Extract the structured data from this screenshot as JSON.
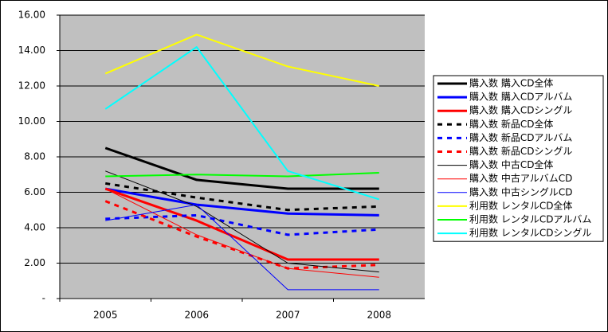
{
  "chart_data": {
    "type": "line",
    "categories": [
      "2005",
      "2006",
      "2007",
      "2008"
    ],
    "ylim": [
      0,
      16
    ],
    "yticks": [
      {
        "value": 0,
        "label": "-"
      },
      {
        "value": 2,
        "label": "2.00"
      },
      {
        "value": 4,
        "label": "4.00"
      },
      {
        "value": 6,
        "label": "6.00"
      },
      {
        "value": 8,
        "label": "8.00"
      },
      {
        "value": 10,
        "label": "10.00"
      },
      {
        "value": 12,
        "label": "12.00"
      },
      {
        "value": 14,
        "label": "14.00"
      },
      {
        "value": 16,
        "label": "16.00"
      }
    ],
    "grid": true,
    "legend": "right",
    "series": [
      {
        "name": "購入数 購入CD全体",
        "color": "#000000",
        "width": 3,
        "dash": "solid",
        "values": [
          8.5,
          6.7,
          6.2,
          6.2
        ]
      },
      {
        "name": "購入数 購入CDアルバム",
        "color": "#0000ff",
        "width": 3,
        "dash": "solid",
        "values": [
          6.2,
          5.3,
          4.8,
          4.7
        ]
      },
      {
        "name": "購入数 購入CDシングル",
        "color": "#ff0000",
        "width": 3,
        "dash": "solid",
        "values": [
          6.2,
          4.4,
          2.2,
          2.2
        ]
      },
      {
        "name": "購入数 新品CD全体",
        "color": "#000000",
        "width": 3,
        "dash": "dashed",
        "values": [
          6.5,
          5.7,
          5.0,
          5.2
        ]
      },
      {
        "name": "購入数 新品CDアルバム",
        "color": "#0000ff",
        "width": 3,
        "dash": "dashed",
        "values": [
          4.5,
          4.7,
          3.6,
          3.9
        ]
      },
      {
        "name": "購入数 新品CDシングル",
        "color": "#ff0000",
        "width": 3,
        "dash": "dashed",
        "values": [
          5.5,
          3.5,
          1.7,
          1.9
        ]
      },
      {
        "name": "購入数 中古CD全体",
        "color": "#000000",
        "width": 1,
        "dash": "solid",
        "values": [
          7.2,
          5.2,
          2.0,
          1.5
        ]
      },
      {
        "name": "購入数 中古アルバムCD",
        "color": "#ff0000",
        "width": 1,
        "dash": "solid",
        "values": [
          6.2,
          3.6,
          1.7,
          1.2
        ]
      },
      {
        "name": "購入数 中古シングルCD",
        "color": "#0000ff",
        "width": 1,
        "dash": "solid",
        "values": [
          4.4,
          5.3,
          0.5,
          0.5
        ]
      },
      {
        "name": "利用数 レンタルCD全体",
        "color": "#ffff00",
        "width": 2,
        "dash": "solid",
        "values": [
          12.7,
          14.9,
          13.1,
          12.0
        ]
      },
      {
        "name": "利用数 レンタルCDアルバム",
        "color": "#00ff00",
        "width": 2,
        "dash": "solid",
        "values": [
          6.9,
          7.0,
          6.9,
          7.1
        ]
      },
      {
        "name": "利用数 レンタルCDシングル",
        "color": "#00ffff",
        "width": 2,
        "dash": "solid",
        "values": [
          10.7,
          14.2,
          7.2,
          5.6
        ]
      }
    ]
  }
}
